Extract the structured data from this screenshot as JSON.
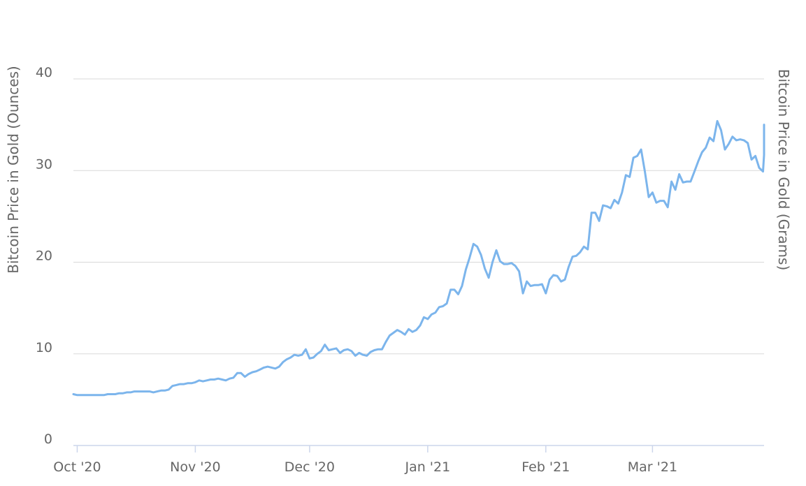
{
  "chart_data": {
    "type": "line",
    "y_left_title": "Bitcoin Price in Gold (Ounces)",
    "y_right_title": "Bitcoin Price in Gold (Grams)",
    "y_ticks": [
      0,
      10,
      20,
      30,
      40
    ],
    "ylim": [
      0,
      40
    ],
    "x_range": [
      "2020-09-30",
      "2021-03-29"
    ],
    "x_ticks": [
      {
        "date": "2020-10-01",
        "label": "Oct '20"
      },
      {
        "date": "2020-11-01",
        "label": "Nov '20"
      },
      {
        "date": "2020-12-01",
        "label": "Dec '20"
      },
      {
        "date": "2021-01-01",
        "label": "Jan '21"
      },
      {
        "date": "2021-02-01",
        "label": "Feb '21"
      },
      {
        "date": "2021-03-01",
        "label": "Mar '21"
      }
    ],
    "grid": true,
    "colors": {
      "line": "#7cb5ec",
      "grid": "#d9d9d9",
      "axis": "#ccd6eb",
      "text": "#666666"
    },
    "series": [
      {
        "points": [
          [
            "2020-09-30",
            5.6
          ],
          [
            "2020-10-01",
            5.5
          ],
          [
            "2020-10-02",
            5.5
          ],
          [
            "2020-10-03",
            5.5
          ],
          [
            "2020-10-04",
            5.5
          ],
          [
            "2020-10-05",
            5.5
          ],
          [
            "2020-10-06",
            5.5
          ],
          [
            "2020-10-07",
            5.5
          ],
          [
            "2020-10-08",
            5.5
          ],
          [
            "2020-10-09",
            5.6
          ],
          [
            "2020-10-10",
            5.6
          ],
          [
            "2020-10-11",
            5.6
          ],
          [
            "2020-10-12",
            5.7
          ],
          [
            "2020-10-13",
            5.7
          ],
          [
            "2020-10-14",
            5.8
          ],
          [
            "2020-10-15",
            5.8
          ],
          [
            "2020-10-16",
            5.9
          ],
          [
            "2020-10-17",
            5.9
          ],
          [
            "2020-10-18",
            5.9
          ],
          [
            "2020-10-19",
            5.9
          ],
          [
            "2020-10-20",
            5.9
          ],
          [
            "2020-10-21",
            5.8
          ],
          [
            "2020-10-22",
            5.9
          ],
          [
            "2020-10-23",
            6.0
          ],
          [
            "2020-10-24",
            6.0
          ],
          [
            "2020-10-25",
            6.1
          ],
          [
            "2020-10-26",
            6.5
          ],
          [
            "2020-10-27",
            6.6
          ],
          [
            "2020-10-28",
            6.7
          ],
          [
            "2020-10-29",
            6.7
          ],
          [
            "2020-10-30",
            6.8
          ],
          [
            "2020-10-31",
            6.8
          ],
          [
            "2020-11-01",
            6.9
          ],
          [
            "2020-11-02",
            7.1
          ],
          [
            "2020-11-03",
            7.0
          ],
          [
            "2020-11-04",
            7.1
          ],
          [
            "2020-11-05",
            7.2
          ],
          [
            "2020-11-06",
            7.2
          ],
          [
            "2020-11-07",
            7.3
          ],
          [
            "2020-11-08",
            7.2
          ],
          [
            "2020-11-09",
            7.1
          ],
          [
            "2020-11-10",
            7.3
          ],
          [
            "2020-11-11",
            7.4
          ],
          [
            "2020-11-12",
            7.9
          ],
          [
            "2020-11-13",
            7.9
          ],
          [
            "2020-11-14",
            7.5
          ],
          [
            "2020-11-15",
            7.8
          ],
          [
            "2020-11-16",
            8.0
          ],
          [
            "2020-11-17",
            8.1
          ],
          [
            "2020-11-18",
            8.3
          ],
          [
            "2020-11-19",
            8.5
          ],
          [
            "2020-11-20",
            8.6
          ],
          [
            "2020-11-21",
            8.5
          ],
          [
            "2020-11-22",
            8.4
          ],
          [
            "2020-11-23",
            8.6
          ],
          [
            "2020-11-24",
            9.1
          ],
          [
            "2020-11-25",
            9.4
          ],
          [
            "2020-11-26",
            9.6
          ],
          [
            "2020-11-27",
            9.9
          ],
          [
            "2020-11-28",
            9.8
          ],
          [
            "2020-11-29",
            9.9
          ],
          [
            "2020-11-30",
            10.5
          ],
          [
            "2020-12-01",
            9.5
          ],
          [
            "2020-12-02",
            9.6
          ],
          [
            "2020-12-03",
            10.0
          ],
          [
            "2020-12-04",
            10.3
          ],
          [
            "2020-12-05",
            11.0
          ],
          [
            "2020-12-06",
            10.4
          ],
          [
            "2020-12-07",
            10.5
          ],
          [
            "2020-12-08",
            10.6
          ],
          [
            "2020-12-09",
            10.1
          ],
          [
            "2020-12-10",
            10.4
          ],
          [
            "2020-12-11",
            10.5
          ],
          [
            "2020-12-12",
            10.3
          ],
          [
            "2020-12-13",
            9.8
          ],
          [
            "2020-12-14",
            10.1
          ],
          [
            "2020-12-15",
            9.9
          ],
          [
            "2020-12-16",
            9.8
          ],
          [
            "2020-12-17",
            10.2
          ],
          [
            "2020-12-18",
            10.4
          ],
          [
            "2020-12-19",
            10.5
          ],
          [
            "2020-12-20",
            10.5
          ],
          [
            "2020-12-21",
            11.3
          ],
          [
            "2020-12-22",
            12.0
          ],
          [
            "2020-12-23",
            12.3
          ],
          [
            "2020-12-24",
            12.6
          ],
          [
            "2020-12-25",
            12.4
          ],
          [
            "2020-12-26",
            12.1
          ],
          [
            "2020-12-27",
            12.7
          ],
          [
            "2020-12-28",
            12.4
          ],
          [
            "2020-12-29",
            12.6
          ],
          [
            "2020-12-30",
            13.1
          ],
          [
            "2020-12-31",
            14.0
          ],
          [
            "2021-01-01",
            13.8
          ],
          [
            "2021-01-02",
            14.3
          ],
          [
            "2021-01-03",
            14.5
          ],
          [
            "2021-01-04",
            15.1
          ],
          [
            "2021-01-05",
            15.2
          ],
          [
            "2021-01-06",
            15.5
          ],
          [
            "2021-01-07",
            17.0
          ],
          [
            "2021-01-08",
            17.0
          ],
          [
            "2021-01-09",
            16.5
          ],
          [
            "2021-01-10",
            17.4
          ],
          [
            "2021-01-11",
            19.2
          ],
          [
            "2021-01-12",
            20.5
          ],
          [
            "2021-01-13",
            22.0
          ],
          [
            "2021-01-14",
            21.7
          ],
          [
            "2021-01-15",
            20.8
          ],
          [
            "2021-01-16",
            19.3
          ],
          [
            "2021-01-17",
            18.3
          ],
          [
            "2021-01-18",
            20.0
          ],
          [
            "2021-01-19",
            21.3
          ],
          [
            "2021-01-20",
            20.1
          ],
          [
            "2021-01-21",
            19.8
          ],
          [
            "2021-01-22",
            19.8
          ],
          [
            "2021-01-23",
            19.9
          ],
          [
            "2021-01-24",
            19.6
          ],
          [
            "2021-01-25",
            19.0
          ],
          [
            "2021-01-26",
            16.6
          ],
          [
            "2021-01-27",
            17.9
          ],
          [
            "2021-01-28",
            17.4
          ],
          [
            "2021-01-29",
            17.5
          ],
          [
            "2021-01-30",
            17.5
          ],
          [
            "2021-01-31",
            17.6
          ],
          [
            "2021-02-01",
            16.6
          ],
          [
            "2021-02-02",
            18.1
          ],
          [
            "2021-02-03",
            18.6
          ],
          [
            "2021-02-04",
            18.5
          ],
          [
            "2021-02-05",
            17.9
          ],
          [
            "2021-02-06",
            18.1
          ],
          [
            "2021-02-07",
            19.5
          ],
          [
            "2021-02-08",
            20.6
          ],
          [
            "2021-02-09",
            20.7
          ],
          [
            "2021-02-10",
            21.1
          ],
          [
            "2021-02-11",
            21.7
          ],
          [
            "2021-02-12",
            21.4
          ],
          [
            "2021-02-13",
            25.4
          ],
          [
            "2021-02-14",
            25.4
          ],
          [
            "2021-02-15",
            24.5
          ],
          [
            "2021-02-16",
            26.2
          ],
          [
            "2021-02-17",
            26.1
          ],
          [
            "2021-02-18",
            25.9
          ],
          [
            "2021-02-19",
            26.8
          ],
          [
            "2021-02-20",
            26.4
          ],
          [
            "2021-02-21",
            27.6
          ],
          [
            "2021-02-22",
            29.5
          ],
          [
            "2021-02-23",
            29.3
          ],
          [
            "2021-02-24",
            31.4
          ],
          [
            "2021-02-25",
            31.6
          ],
          [
            "2021-02-26",
            32.3
          ],
          [
            "2021-02-27",
            29.9
          ],
          [
            "2021-02-28",
            27.1
          ],
          [
            "2021-03-01",
            27.6
          ],
          [
            "2021-03-02",
            26.5
          ],
          [
            "2021-03-03",
            26.7
          ],
          [
            "2021-03-04",
            26.7
          ],
          [
            "2021-03-05",
            26.0
          ],
          [
            "2021-03-06",
            28.8
          ],
          [
            "2021-03-07",
            27.9
          ],
          [
            "2021-03-08",
            29.6
          ],
          [
            "2021-03-09",
            28.7
          ],
          [
            "2021-03-10",
            28.8
          ],
          [
            "2021-03-11",
            28.8
          ],
          [
            "2021-03-12",
            29.9
          ],
          [
            "2021-03-13",
            31.0
          ],
          [
            "2021-03-14",
            32.0
          ],
          [
            "2021-03-15",
            32.5
          ],
          [
            "2021-03-16",
            33.6
          ],
          [
            "2021-03-17",
            33.2
          ],
          [
            "2021-03-18",
            35.4
          ],
          [
            "2021-03-19",
            34.4
          ],
          [
            "2021-03-20",
            32.3
          ],
          [
            "2021-03-21",
            32.9
          ],
          [
            "2021-03-22",
            33.7
          ],
          [
            "2021-03-23",
            33.3
          ],
          [
            "2021-03-24",
            33.4
          ],
          [
            "2021-03-25",
            33.3
          ],
          [
            "2021-03-26",
            33.0
          ],
          [
            "2021-03-27",
            31.2
          ],
          [
            "2021-03-28",
            31.6
          ],
          [
            "2021-03-29",
            30.3
          ],
          [
            "2021-03-30",
            29.9
          ],
          [
            "2021-03-31",
            31.7
          ],
          [
            "2021-04-01",
            32.2
          ],
          [
            "2021-04-02",
            32.3
          ],
          [
            "2021-04-03",
            33.6
          ],
          [
            "2021-04-04",
            35.0
          ]
        ]
      }
    ]
  }
}
